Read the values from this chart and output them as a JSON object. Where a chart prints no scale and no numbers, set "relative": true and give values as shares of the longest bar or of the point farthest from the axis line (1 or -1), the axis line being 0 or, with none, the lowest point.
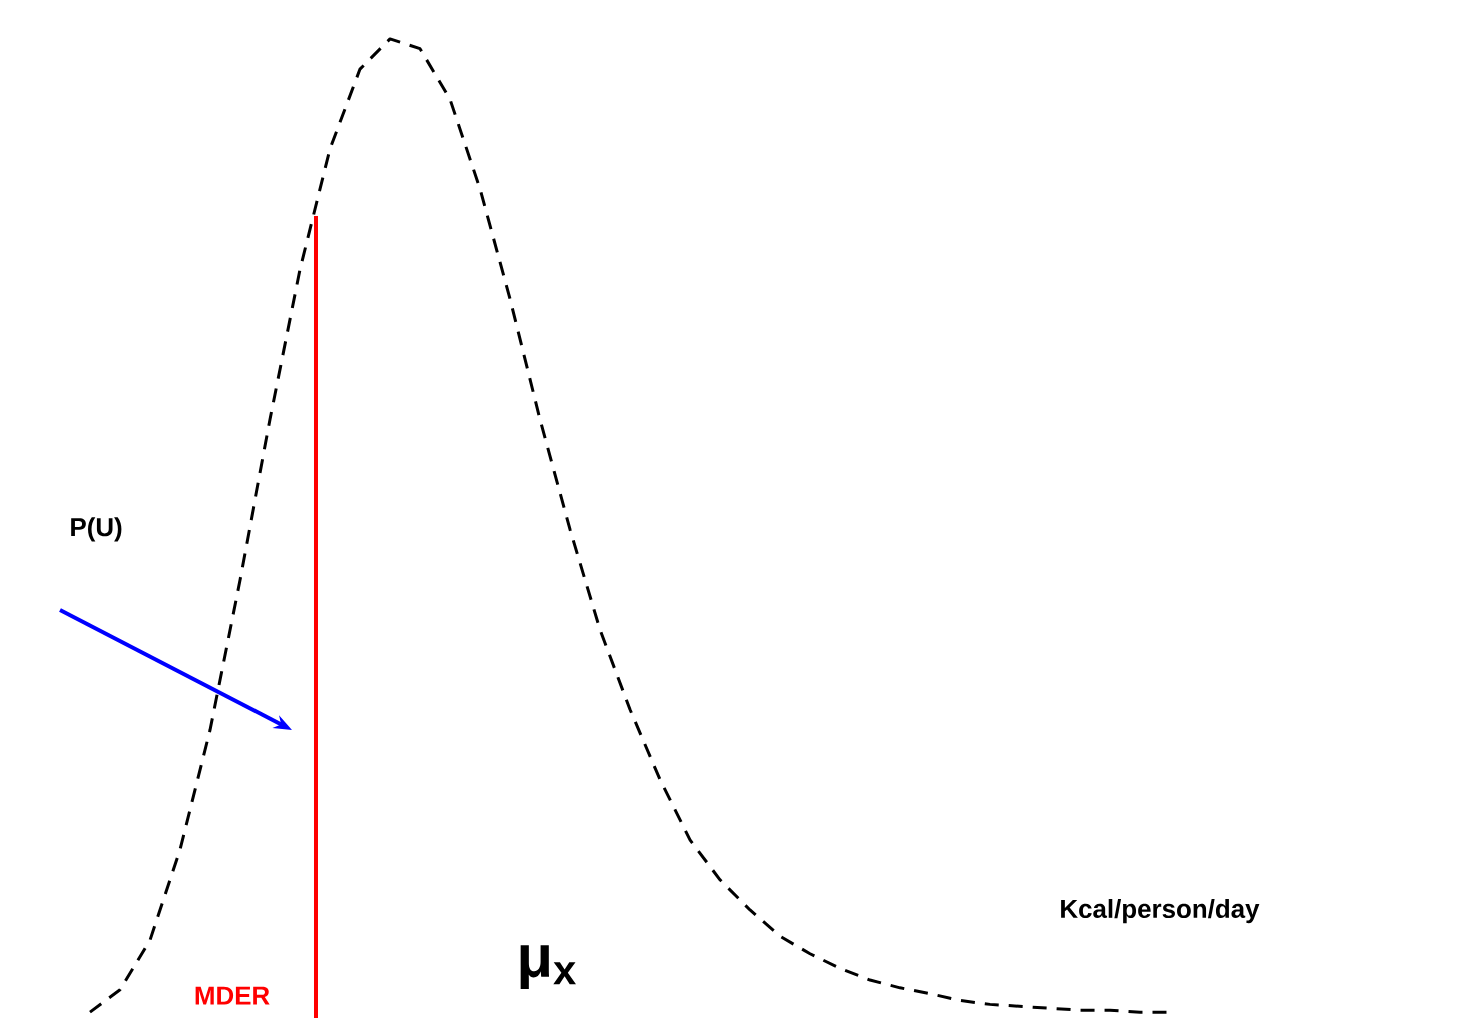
{
  "chart_data": {
    "type": "line",
    "relative": true,
    "tick_labels": false,
    "xlabel": "Kcal/person/day",
    "categories": [
      null,
      null,
      null,
      null,
      null,
      null,
      null,
      null,
      null,
      null,
      null,
      null,
      null,
      null,
      null,
      null,
      null,
      null,
      null,
      null,
      null,
      null,
      null,
      null,
      null,
      null,
      null,
      null,
      null,
      null,
      null,
      null,
      null,
      null,
      null,
      null,
      null
    ],
    "series": [
      {
        "color": "#000000",
        "line_style": "dashed",
        "values": [
          0,
          0.023,
          0.074,
          0.167,
          0.29,
          0.444,
          0.609,
          0.763,
          0.887,
          0.969,
          1.0,
          0.99,
          0.938,
          0.846,
          0.733,
          0.609,
          0.496,
          0.393,
          0.311,
          0.239,
          0.177,
          0.136,
          0.105,
          0.078,
          0.06,
          0.045,
          0.033,
          0.025,
          0.019,
          0.012,
          0.008,
          0.006,
          0.004,
          0.002,
          0.002,
          0,
          0
        ]
      }
    ],
    "annotations": [
      "P(U)",
      "μ$_{x}$",
      "MDER"
    ]
  }
}
